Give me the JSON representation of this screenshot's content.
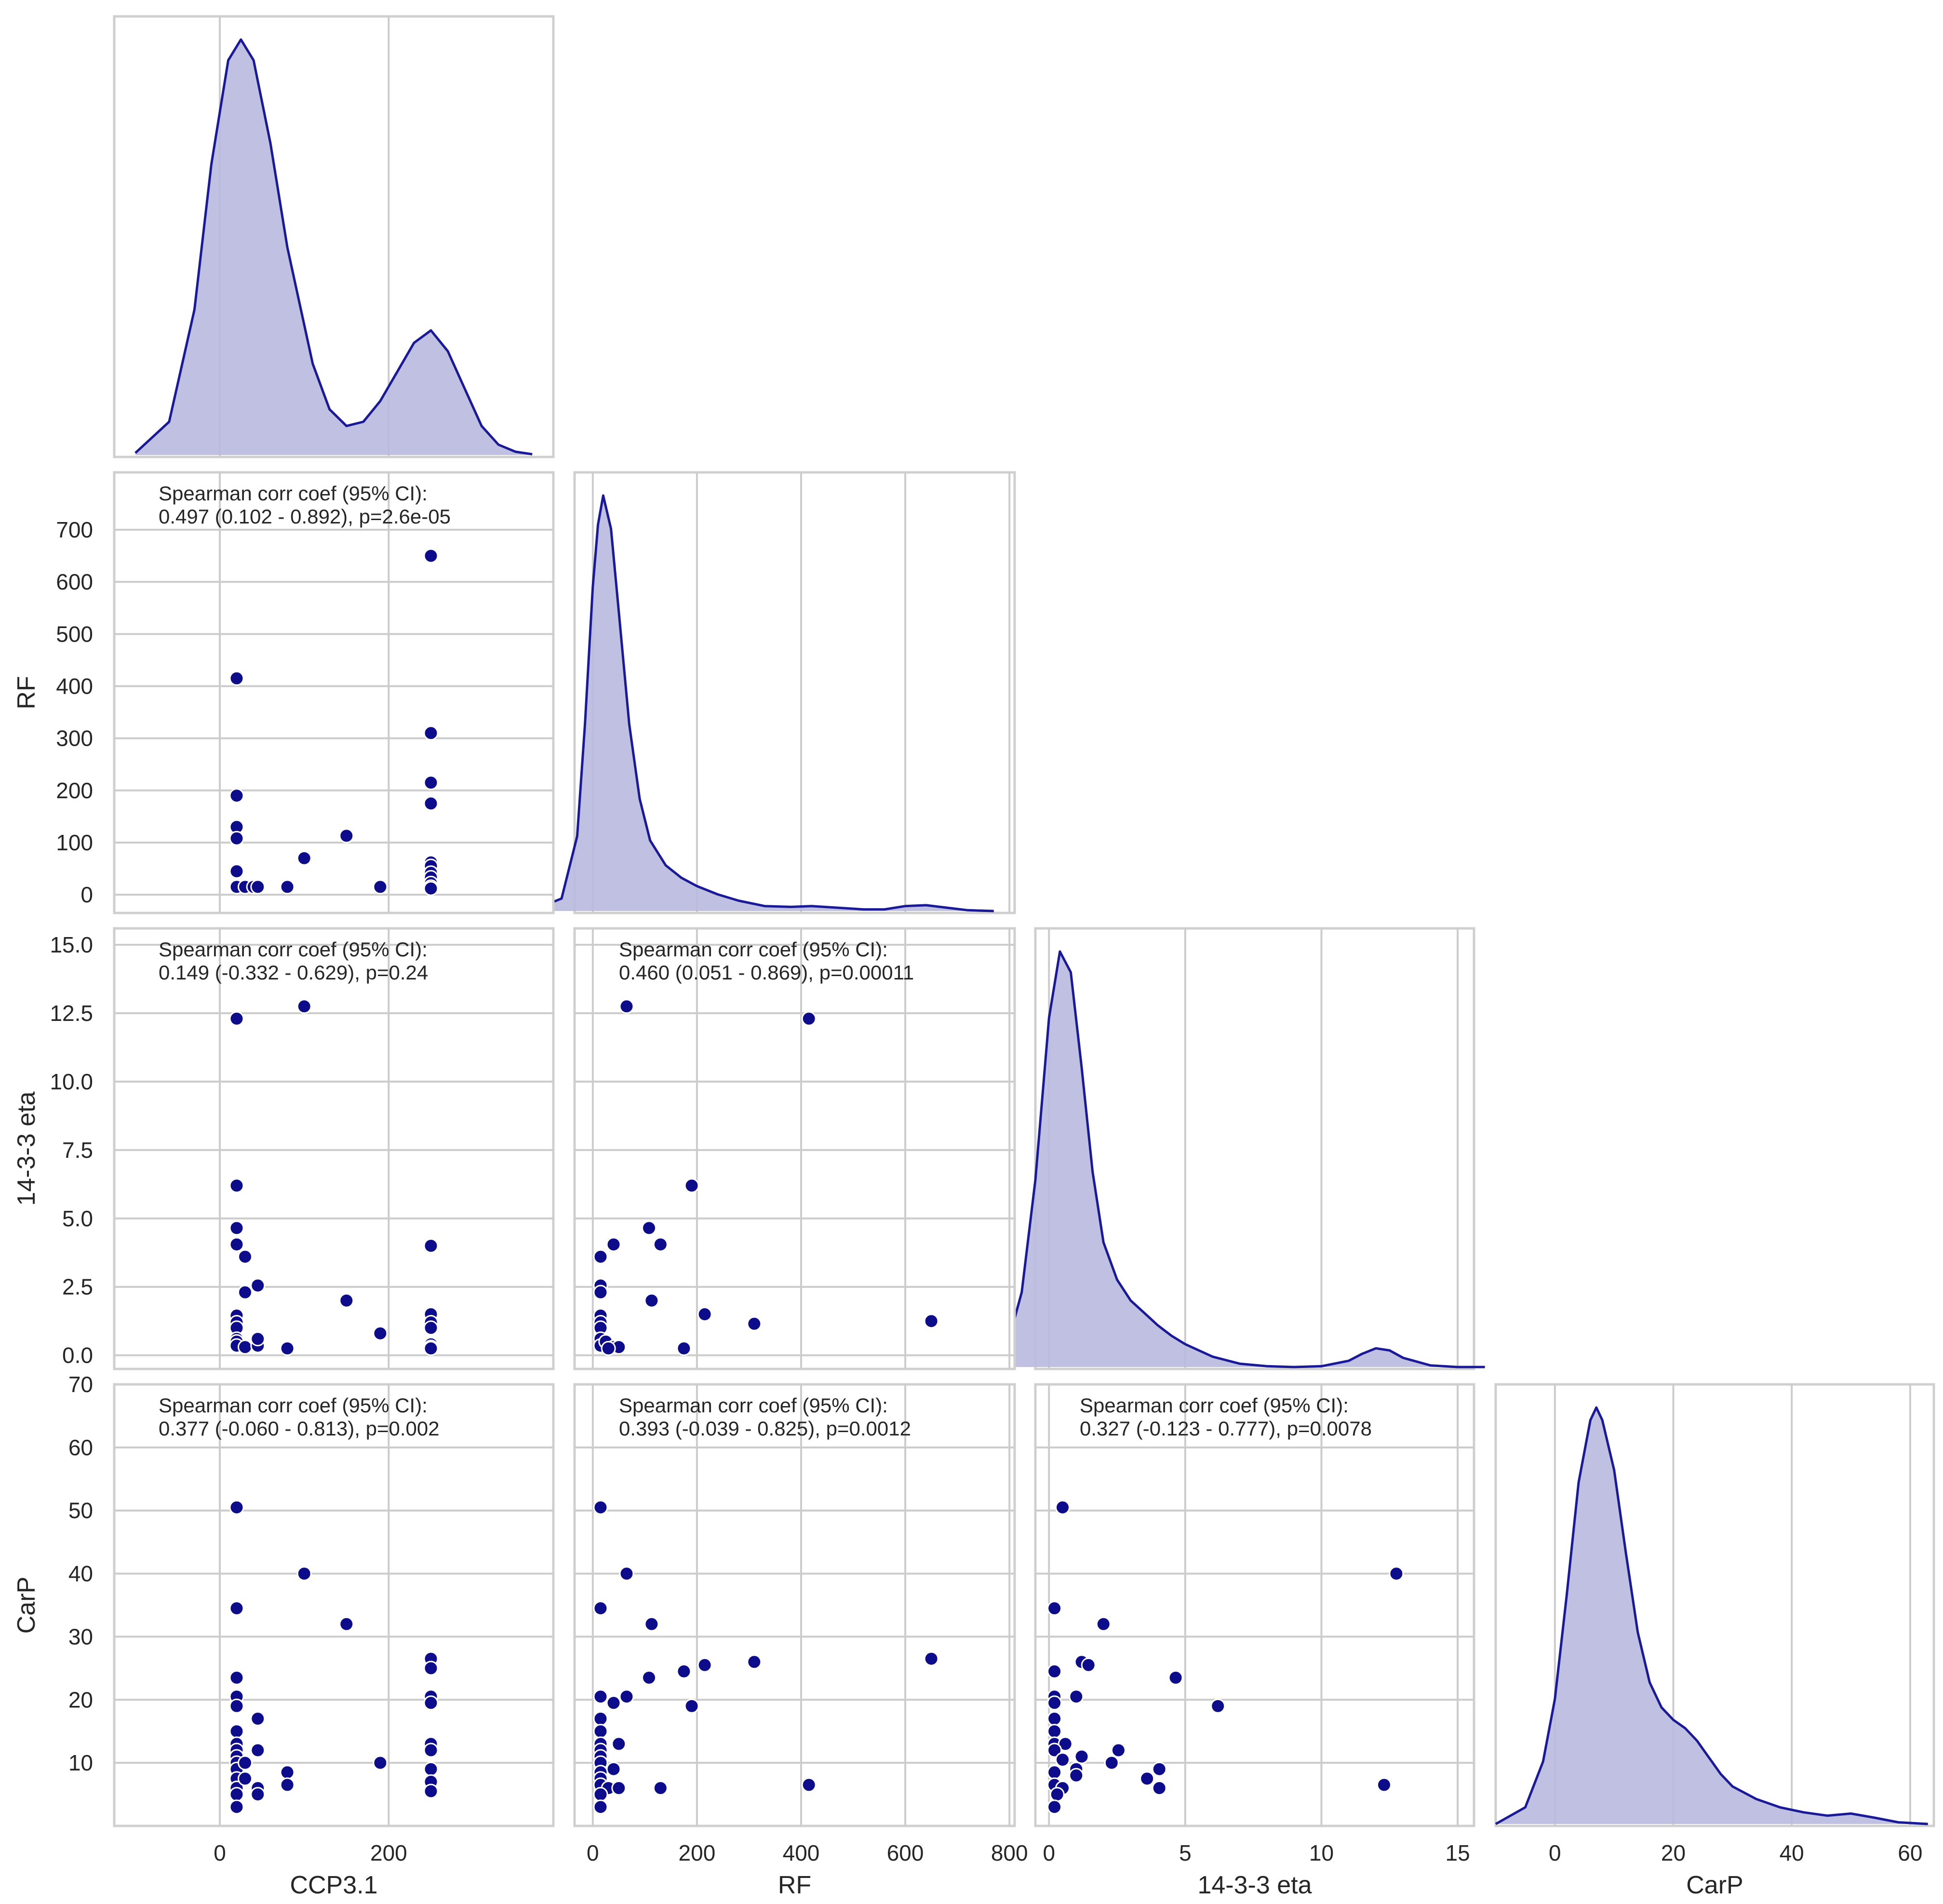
{
  "chart_data": {
    "type": "pairplot",
    "variables": [
      "CCP3.1",
      "RF",
      "14-3-3 eta",
      "CarP"
    ],
    "axes": {
      "CCP3.1": {
        "label": "CCP3.1",
        "range": [
          -125,
          395
        ],
        "ticks": [
          0,
          200
        ],
        "tick_labels": [
          "0",
          "200"
        ]
      },
      "RF": {
        "label": "RF",
        "range": [
          -35,
          810
        ],
        "ticks": [
          0,
          100,
          200,
          300,
          400,
          500,
          600,
          700
        ],
        "tick_labels": [
          "0",
          "100",
          "200",
          "300",
          "400",
          "500",
          "600",
          "700"
        ],
        "x_ticks": [
          0,
          200,
          400,
          600,
          800
        ],
        "x_tick_labels": [
          "0",
          "200",
          "400",
          "600",
          "800"
        ]
      },
      "14-3-3 eta": {
        "label": "14-3-3 eta",
        "range": [
          -0.5,
          15.6
        ],
        "ticks": [
          0,
          2.5,
          5,
          7.5,
          10,
          12.5,
          15
        ],
        "tick_labels": [
          "0.0",
          "2.5",
          "5.0",
          "7.5",
          "10.0",
          "12.5",
          "15.0"
        ],
        "x_ticks": [
          0,
          5,
          10,
          15
        ],
        "x_tick_labels": [
          "0",
          "5",
          "10",
          "15"
        ]
      },
      "CarP": {
        "label": "CarP",
        "range": [
          0,
          70
        ],
        "ticks": [
          10,
          20,
          30,
          40,
          50,
          60,
          70
        ],
        "tick_labels": [
          "10",
          "20",
          "30",
          "40",
          "50",
          "60",
          "70"
        ],
        "x_range": [
          -10,
          64
        ],
        "x_ticks": [
          0,
          20,
          40,
          60
        ],
        "x_tick_labels": [
          "0",
          "20",
          "40",
          "60"
        ]
      }
    },
    "kde": {
      "CCP3.1": {
        "x": [
          -100,
          -60,
          -30,
          -10,
          10,
          25,
          40,
          60,
          80,
          110,
          130,
          150,
          170,
          190,
          210,
          230,
          250,
          270,
          290,
          310,
          330,
          350,
          370
        ],
        "density": [
          0.005,
          0.08,
          0.35,
          0.7,
          0.95,
          1.0,
          0.95,
          0.75,
          0.5,
          0.22,
          0.11,
          0.07,
          0.08,
          0.13,
          0.2,
          0.27,
          0.3,
          0.25,
          0.16,
          0.07,
          0.025,
          0.008,
          0.002
        ]
      },
      "RF": {
        "x": [
          -120,
          -60,
          -30,
          -15,
          0,
          10,
          20,
          35,
          50,
          70,
          90,
          110,
          140,
          170,
          200,
          240,
          280,
          330,
          380,
          420,
          470,
          520,
          560,
          600,
          640,
          680,
          720,
          770
        ],
        "density": [
          0.0,
          0.03,
          0.18,
          0.45,
          0.78,
          0.93,
          1.0,
          0.92,
          0.72,
          0.45,
          0.27,
          0.17,
          0.11,
          0.08,
          0.06,
          0.04,
          0.025,
          0.012,
          0.01,
          0.012,
          0.008,
          0.004,
          0.004,
          0.012,
          0.014,
          0.008,
          0.002,
          0.0
        ]
      },
      "14-3-3 eta": {
        "x": [
          -2.8,
          -2,
          -1.5,
          -1,
          -0.5,
          0,
          0.4,
          0.8,
          1.2,
          1.6,
          2,
          2.5,
          3,
          3.5,
          4,
          4.5,
          5,
          6,
          7,
          8,
          9,
          10,
          11,
          11.5,
          12,
          12.5,
          13,
          14,
          15,
          16
        ],
        "density": [
          0.0,
          0.02,
          0.06,
          0.18,
          0.45,
          0.84,
          1.0,
          0.95,
          0.72,
          0.47,
          0.3,
          0.21,
          0.16,
          0.13,
          0.1,
          0.075,
          0.055,
          0.025,
          0.008,
          0.002,
          0.0,
          0.002,
          0.015,
          0.032,
          0.045,
          0.04,
          0.022,
          0.004,
          0.0,
          0.0
        ]
      },
      "CarP": {
        "x": [
          -10,
          -5,
          -2,
          0,
          2,
          4,
          6,
          7,
          8,
          10,
          12,
          14,
          16,
          18,
          20,
          22,
          24,
          26,
          28,
          30,
          34,
          38,
          42,
          46,
          50,
          54,
          58,
          63
        ],
        "density": [
          0.0,
          0.04,
          0.15,
          0.3,
          0.55,
          0.82,
          0.97,
          1.0,
          0.97,
          0.85,
          0.65,
          0.46,
          0.34,
          0.28,
          0.25,
          0.23,
          0.2,
          0.16,
          0.12,
          0.09,
          0.06,
          0.04,
          0.028,
          0.02,
          0.025,
          0.015,
          0.004,
          0.0
        ]
      }
    },
    "panels": [
      {
        "x": "CCP3.1",
        "y": "RF",
        "annotation": [
          "Spearman corr coef (95% CI):",
          "0.497 (0.102 - 0.892), p=2.6e-05"
        ],
        "points": [
          [
            250,
            650
          ],
          [
            20,
            415
          ],
          [
            250,
            310
          ],
          [
            250,
            215
          ],
          [
            250,
            175
          ],
          [
            20,
            190
          ],
          [
            20,
            130
          ],
          [
            20,
            108
          ],
          [
            150,
            113
          ],
          [
            100,
            70
          ],
          [
            250,
            62
          ],
          [
            250,
            55
          ],
          [
            250,
            42
          ],
          [
            250,
            33
          ],
          [
            250,
            22
          ],
          [
            250,
            15
          ],
          [
            250,
            12
          ],
          [
            20,
            45
          ],
          [
            20,
            15
          ],
          [
            30,
            15
          ],
          [
            40,
            15
          ],
          [
            45,
            15
          ],
          [
            80,
            15
          ],
          [
            190,
            15
          ]
        ]
      },
      {
        "x": "CCP3.1",
        "y": "14-3-3 eta",
        "annotation": [
          "Spearman corr coef (95% CI):",
          "0.149 (-0.332 - 0.629), p=0.24"
        ],
        "points": [
          [
            20,
            12.3
          ],
          [
            100,
            12.75
          ],
          [
            20,
            6.2
          ],
          [
            20,
            4.65
          ],
          [
            20,
            4.05
          ],
          [
            30,
            3.6
          ],
          [
            45,
            2.55
          ],
          [
            30,
            2.3
          ],
          [
            20,
            1.45
          ],
          [
            20,
            1.2
          ],
          [
            20,
            1.0
          ],
          [
            20,
            0.6
          ],
          [
            20,
            0.5
          ],
          [
            20,
            0.35
          ],
          [
            30,
            0.3
          ],
          [
            45,
            0.35
          ],
          [
            45,
            0.6
          ],
          [
            80,
            0.25
          ],
          [
            150,
            2.0
          ],
          [
            190,
            0.8
          ],
          [
            250,
            4.0
          ],
          [
            250,
            1.5
          ],
          [
            250,
            1.2
          ],
          [
            250,
            1.0
          ],
          [
            250,
            0.4
          ],
          [
            250,
            0.3
          ],
          [
            250,
            0.25
          ]
        ]
      },
      {
        "x": "RF",
        "y": "14-3-3 eta",
        "annotation": [
          "Spearman corr coef (95% CI):",
          "0.460 (0.051 - 0.869), p=0.00011"
        ],
        "points": [
          [
            65,
            12.75
          ],
          [
            415,
            12.3
          ],
          [
            190,
            6.2
          ],
          [
            108,
            4.65
          ],
          [
            40,
            4.05
          ],
          [
            130,
            4.05
          ],
          [
            15,
            3.6
          ],
          [
            15,
            2.55
          ],
          [
            15,
            2.3
          ],
          [
            113,
            2.0
          ],
          [
            215,
            1.5
          ],
          [
            15,
            1.45
          ],
          [
            15,
            1.2
          ],
          [
            15,
            1.0
          ],
          [
            310,
            1.15
          ],
          [
            650,
            1.25
          ],
          [
            15,
            0.6
          ],
          [
            15,
            0.35
          ],
          [
            25,
            0.5
          ],
          [
            40,
            0.3
          ],
          [
            50,
            0.3
          ],
          [
            30,
            0.25
          ],
          [
            175,
            0.25
          ]
        ]
      },
      {
        "x": "CCP3.1",
        "y": "CarP",
        "annotation": [
          "Spearman corr coef (95% CI):",
          "0.377 (-0.060 - 0.813), p=0.002"
        ],
        "points": [
          [
            20,
            50.5
          ],
          [
            100,
            40
          ],
          [
            20,
            34.5
          ],
          [
            150,
            32
          ],
          [
            20,
            23.5
          ],
          [
            20,
            20.5
          ],
          [
            20,
            19
          ],
          [
            20,
            15
          ],
          [
            20,
            13
          ],
          [
            20,
            12
          ],
          [
            20,
            11
          ],
          [
            20,
            10
          ],
          [
            20,
            9
          ],
          [
            20,
            7.5
          ],
          [
            20,
            6
          ],
          [
            20,
            5
          ],
          [
            20,
            3
          ],
          [
            45,
            17
          ],
          [
            45,
            12
          ],
          [
            30,
            10
          ],
          [
            30,
            7.5
          ],
          [
            45,
            6
          ],
          [
            45,
            5
          ],
          [
            80,
            8.5
          ],
          [
            80,
            6.5
          ],
          [
            190,
            10
          ],
          [
            250,
            26.5
          ],
          [
            250,
            25
          ],
          [
            250,
            20.5
          ],
          [
            250,
            19.5
          ],
          [
            250,
            13
          ],
          [
            250,
            12
          ],
          [
            250,
            9
          ],
          [
            250,
            7
          ],
          [
            250,
            5.5
          ]
        ]
      },
      {
        "x": "RF",
        "y": "CarP",
        "annotation": [
          "Spearman corr coef (95% CI):",
          "0.393 (-0.039 - 0.825), p=0.0012"
        ],
        "points": [
          [
            15,
            50.5
          ],
          [
            65,
            40
          ],
          [
            15,
            34.5
          ],
          [
            113,
            32
          ],
          [
            650,
            26.5
          ],
          [
            310,
            26
          ],
          [
            215,
            25.5
          ],
          [
            175,
            24.5
          ],
          [
            108,
            23.5
          ],
          [
            65,
            20.5
          ],
          [
            15,
            20.5
          ],
          [
            40,
            19.5
          ],
          [
            190,
            19
          ],
          [
            15,
            17
          ],
          [
            15,
            15
          ],
          [
            15,
            13
          ],
          [
            50,
            13
          ],
          [
            15,
            12
          ],
          [
            15,
            11
          ],
          [
            15,
            10
          ],
          [
            40,
            9
          ],
          [
            15,
            8.5
          ],
          [
            15,
            7.5
          ],
          [
            15,
            6.5
          ],
          [
            30,
            6
          ],
          [
            50,
            6
          ],
          [
            130,
            6
          ],
          [
            415,
            6.5
          ],
          [
            15,
            5
          ],
          [
            15,
            3
          ]
        ]
      },
      {
        "x": "14-3-3 eta",
        "y": "CarP",
        "annotation": [
          "Spearman corr coef (95% CI):",
          "0.327 (-0.123 - 0.777), p=0.0078"
        ],
        "points": [
          [
            0.5,
            50.5
          ],
          [
            12.75,
            40
          ],
          [
            0.2,
            34.5
          ],
          [
            2.0,
            32
          ],
          [
            1.2,
            26
          ],
          [
            1.45,
            25.5
          ],
          [
            0.2,
            24.5
          ],
          [
            4.65,
            23.5
          ],
          [
            0.2,
            20.5
          ],
          [
            1.0,
            20.5
          ],
          [
            0.2,
            19.5
          ],
          [
            6.2,
            19
          ],
          [
            0.2,
            17
          ],
          [
            0.2,
            15
          ],
          [
            0.2,
            13
          ],
          [
            0.6,
            13
          ],
          [
            0.2,
            12
          ],
          [
            2.55,
            12
          ],
          [
            1.2,
            11
          ],
          [
            0.5,
            10.5
          ],
          [
            2.3,
            10
          ],
          [
            1.0,
            9
          ],
          [
            4.05,
            9
          ],
          [
            0.2,
            8.5
          ],
          [
            1.0,
            8
          ],
          [
            3.6,
            7.5
          ],
          [
            0.2,
            6.5
          ],
          [
            0.5,
            6
          ],
          [
            4.05,
            6
          ],
          [
            12.3,
            6.5
          ],
          [
            0.3,
            5
          ],
          [
            0.2,
            3
          ]
        ]
      }
    ]
  }
}
